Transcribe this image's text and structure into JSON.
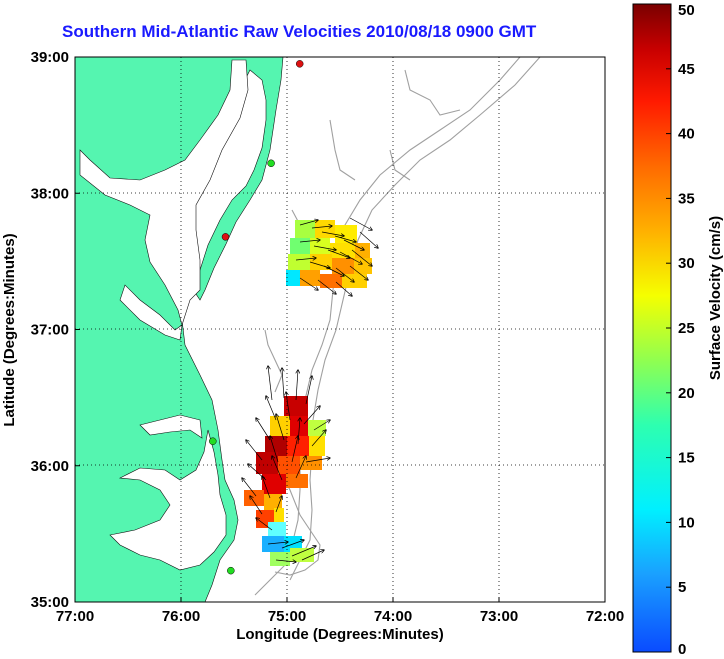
{
  "title": "Southern Mid-Atlantic Raw Velocities 2010/08/18 0900 GMT",
  "xlabel": "Longitude (Degrees:Minutes)",
  "ylabel": "Latitude (Degrees:Minutes)",
  "x_ticks": [
    "77:00",
    "76:00",
    "75:00",
    "74:00",
    "73:00",
    "72:00"
  ],
  "y_ticks": [
    "39:00",
    "38:00",
    "37:00",
    "36:00",
    "35:00"
  ],
  "colorbar": {
    "label": "Surface Velocity (cm/s)",
    "ticks": [
      "0",
      "5",
      "10",
      "15",
      "20",
      "25",
      "30",
      "35",
      "40",
      "45",
      "50"
    ],
    "range": [
      0,
      50
    ]
  },
  "colors": {
    "land": "#55f5b0",
    "title": "#1a1aff",
    "site_active": "#22dd22",
    "site_inactive": "#dd1111"
  },
  "stations": [
    {
      "lon": -74.88,
      "lat": 38.95,
      "status": "inactive"
    },
    {
      "lon": -75.15,
      "lat": 38.22,
      "status": "active"
    },
    {
      "lon": -75.58,
      "lat": 37.68,
      "status": "inactive"
    },
    {
      "lon": -75.7,
      "lat": 36.18,
      "status": "active"
    },
    {
      "lon": -75.53,
      "lat": 35.23,
      "status": "active"
    }
  ]
}
